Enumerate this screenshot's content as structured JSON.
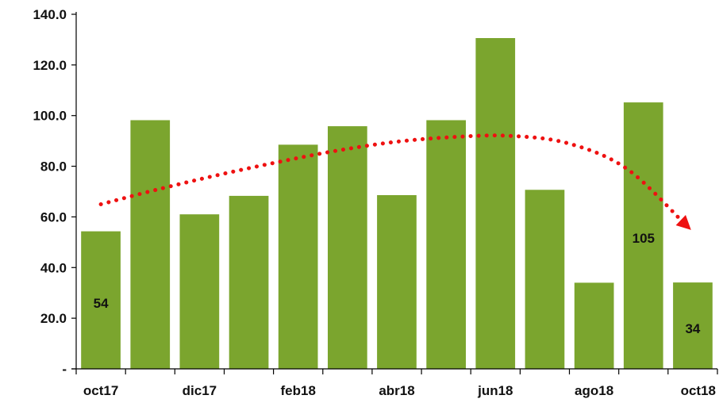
{
  "chart_data": {
    "type": "bar",
    "categories": [
      "oct17",
      "nov17",
      "dic17",
      "ene18",
      "feb18",
      "mar18",
      "abr18",
      "may18",
      "jun18",
      "jul18",
      "ago18",
      "sep18",
      "oct18"
    ],
    "x_tick_labels_shown": [
      "oct17",
      "dic17",
      "feb18",
      "abr18",
      "jun18",
      "ago18",
      "oct18"
    ],
    "values": [
      54.3,
      98.2,
      61.0,
      68.3,
      88.5,
      95.8,
      68.6,
      98.2,
      130.6,
      70.7,
      34.0,
      105.2,
      34.1
    ],
    "y_tick_labels": [
      "-",
      "20.0",
      "40.0",
      "60.0",
      "80.0",
      "100.0",
      "120.0",
      "140.0"
    ],
    "ylim": [
      0,
      140
    ],
    "y_tick_step": 20,
    "data_labels": [
      {
        "category": "oct17",
        "text": "54"
      },
      {
        "category": "sep18",
        "text": "105"
      },
      {
        "category": "oct18",
        "text": "34"
      }
    ],
    "trend": {
      "style": "dotted-arrow",
      "values": [
        65,
        71,
        76.5,
        81.5,
        86,
        89.5,
        91.5,
        92,
        89,
        79,
        57
      ]
    },
    "colors": {
      "bar": "#7BA52E",
      "trend": "#EE1111",
      "axis": "#000000",
      "text": "#111111"
    },
    "title": "",
    "xlabel": "",
    "ylabel": "",
    "grid": false,
    "legend": "none"
  }
}
